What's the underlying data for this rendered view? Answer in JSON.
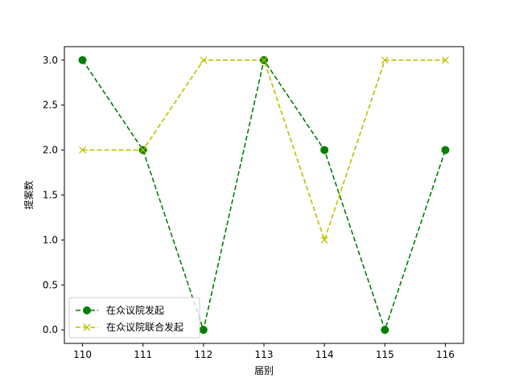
{
  "chart_data": {
    "type": "line",
    "title": "",
    "xlabel": "届别",
    "ylabel": "提案数",
    "x": [
      110,
      111,
      112,
      113,
      114,
      115,
      116
    ],
    "xlim": [
      109.7,
      116.3
    ],
    "ylim": [
      -0.15,
      3.15
    ],
    "yticks": [
      0.0,
      0.5,
      1.0,
      1.5,
      2.0,
      2.5,
      3.0
    ],
    "ytick_labels": [
      "0.0",
      "0.5",
      "1.0",
      "1.5",
      "2.0",
      "2.5",
      "3.0"
    ],
    "grid": false,
    "legend_position": "lower-left",
    "series": [
      {
        "name": "在众议院发起",
        "values": [
          3,
          2,
          0,
          3,
          2,
          0,
          2
        ],
        "color": "#008000",
        "marker": "circle",
        "line_style": "dashed"
      },
      {
        "name": "在众议院联合发起",
        "values": [
          2,
          2,
          3,
          3,
          1,
          3,
          3
        ],
        "color": "#bfbf00",
        "marker": "x",
        "line_style": "dashed"
      }
    ]
  }
}
